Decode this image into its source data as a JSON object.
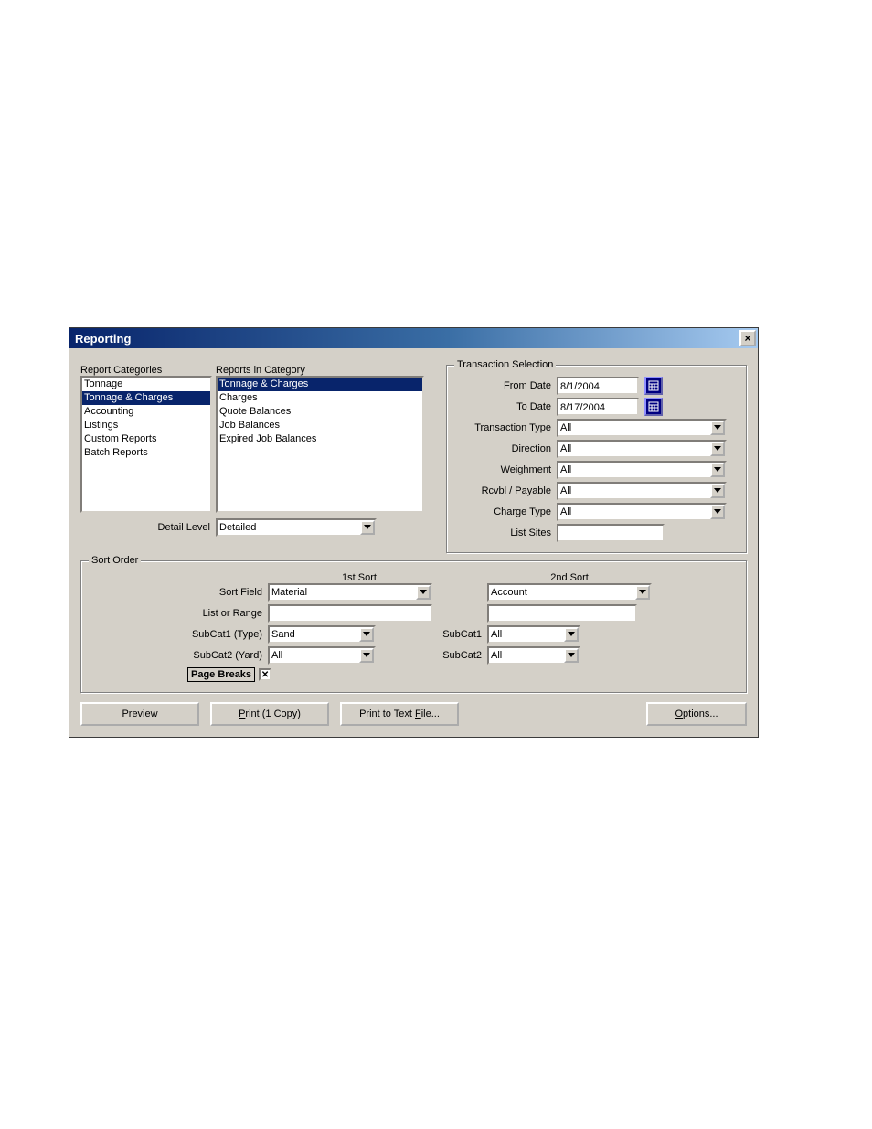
{
  "window": {
    "title": "Reporting"
  },
  "labels": {
    "report_categories": "Report Categories",
    "reports_in_category": "Reports in Category",
    "detail_level": "Detail Level",
    "transaction_selection": "Transaction Selection",
    "from_date": "From Date",
    "to_date": "To Date",
    "transaction_type": "Transaction Type",
    "direction": "Direction",
    "weighment": "Weighment",
    "rcvbl_payable": "Rcvbl / Payable",
    "charge_type": "Charge Type",
    "list_sites": "List Sites",
    "sort_order": "Sort Order",
    "first_sort": "1st Sort",
    "second_sort": "2nd Sort",
    "sort_field": "Sort Field",
    "list_or_range": "List or Range",
    "subcat1_type": "SubCat1 (Type)",
    "subcat2_yard": "SubCat2 (Yard)",
    "subcat1": "SubCat1",
    "subcat2": "SubCat2",
    "page_breaks": "Page Breaks"
  },
  "report_categories": {
    "items": [
      "Tonnage",
      "Tonnage & Charges",
      "Accounting",
      "Listings",
      "Custom Reports",
      "Batch Reports"
    ],
    "selected_index": 1
  },
  "reports_in_category": {
    "items": [
      "Tonnage & Charges",
      "Charges",
      "Quote Balances",
      "Job Balances",
      "Expired Job Balances"
    ],
    "selected_index": 0
  },
  "detail_level": "Detailed",
  "transaction": {
    "from_date": "8/1/2004",
    "to_date": "8/17/2004",
    "transaction_type": "All",
    "direction": "All",
    "weighment": "All",
    "rcvbl_payable": "All",
    "charge_type": "All",
    "list_sites": ""
  },
  "sort": {
    "first": {
      "sort_field": "Material",
      "list_or_range": "",
      "subcat1": "Sand",
      "subcat2": "All"
    },
    "second": {
      "sort_field": "Account",
      "list_or_range": "",
      "subcat1": "All",
      "subcat2": "All"
    }
  },
  "page_breaks_checked": true,
  "buttons": {
    "preview": "Preview",
    "print": "Print (1 Copy)",
    "print_to_file": "Print to Text File...",
    "options": "Options..."
  },
  "colors": {
    "titlebar_start": "#08246b",
    "titlebar_end": "#a6caf0",
    "selection": "#08246b",
    "face": "#d4d0c8",
    "calendar_btn": "#000080"
  }
}
